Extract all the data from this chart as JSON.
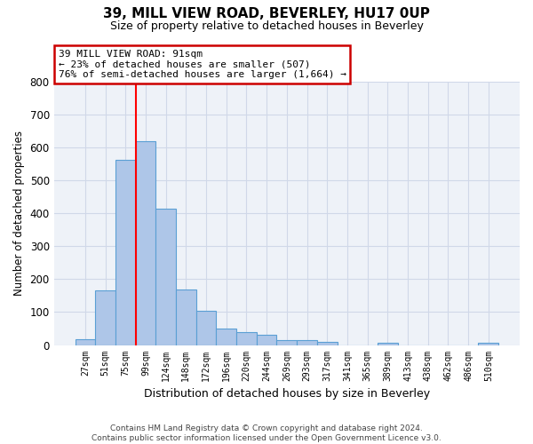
{
  "title": "39, MILL VIEW ROAD, BEVERLEY, HU17 0UP",
  "subtitle": "Size of property relative to detached houses in Beverley",
  "xlabel": "Distribution of detached houses by size in Beverley",
  "ylabel": "Number of detached properties",
  "footer_line1": "Contains HM Land Registry data © Crown copyright and database right 2024.",
  "footer_line2": "Contains public sector information licensed under the Open Government Licence v3.0.",
  "bin_labels": [
    "27sqm",
    "51sqm",
    "75sqm",
    "99sqm",
    "124sqm",
    "148sqm",
    "172sqm",
    "196sqm",
    "220sqm",
    "244sqm",
    "269sqm",
    "293sqm",
    "317sqm",
    "341sqm",
    "365sqm",
    "389sqm",
    "413sqm",
    "438sqm",
    "462sqm",
    "486sqm",
    "510sqm"
  ],
  "bar_values": [
    18,
    165,
    563,
    620,
    413,
    170,
    103,
    51,
    38,
    30,
    14,
    14,
    10,
    0,
    0,
    7,
    0,
    0,
    0,
    0,
    7
  ],
  "bar_color": "#aec6e8",
  "bar_edge_color": "#5a9fd4",
  "grid_color": "#d0d8e8",
  "background_color": "#eef2f8",
  "property_line_x": 2.5,
  "annotation_text_line1": "39 MILL VIEW ROAD: 91sqm",
  "annotation_text_line2": "← 23% of detached houses are smaller (507)",
  "annotation_text_line3": "76% of semi-detached houses are larger (1,664) →",
  "annotation_box_color": "#ffffff",
  "annotation_box_edge": "#cc0000",
  "ylim": [
    0,
    800
  ],
  "yticks": [
    0,
    100,
    200,
    300,
    400,
    500,
    600,
    700,
    800
  ]
}
